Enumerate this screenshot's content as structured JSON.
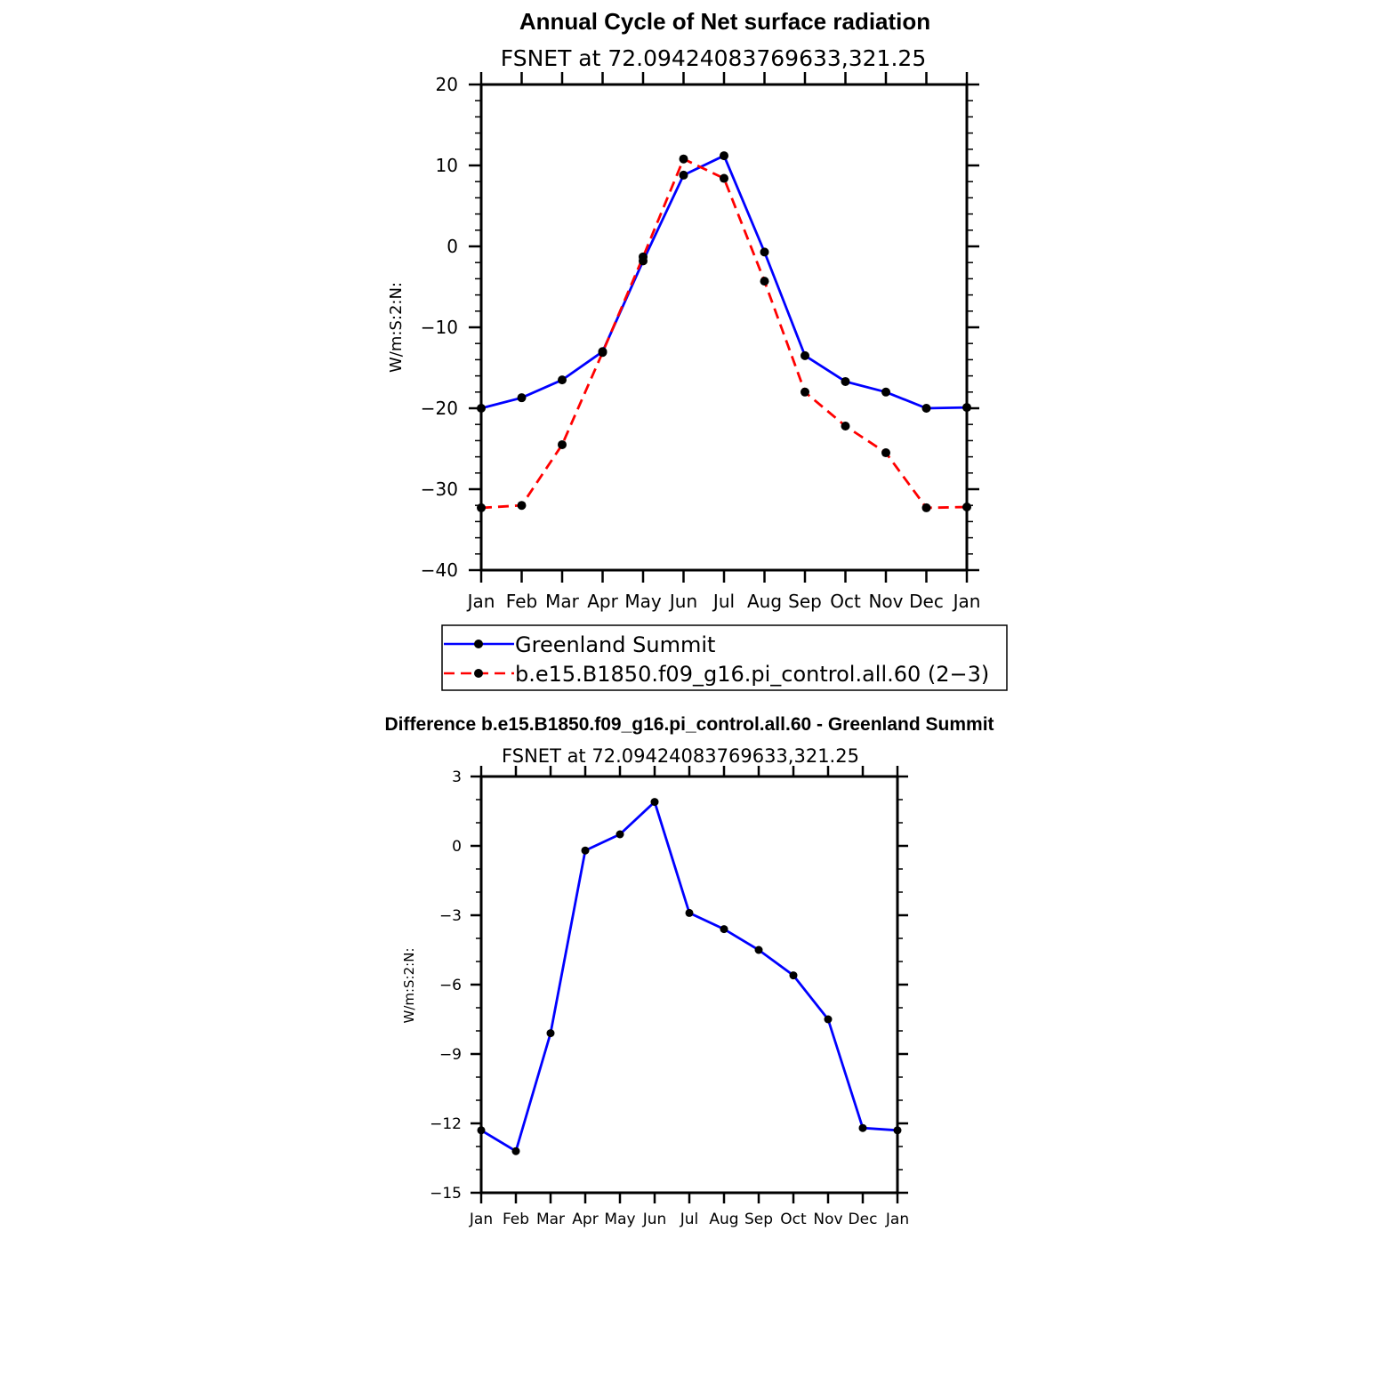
{
  "chart_data": [
    {
      "type": "line",
      "title": "Annual Cycle of Net surface radiation",
      "subtitle": "FSNET at 72.09424083769633,321.25",
      "ylabel": "W/m:S:2:N:",
      "xlabel": "",
      "categories": [
        "Jan",
        "Feb",
        "Mar",
        "Apr",
        "May",
        "Jun",
        "Jul",
        "Aug",
        "Sep",
        "Oct",
        "Nov",
        "Dec",
        "Jan"
      ],
      "ylim": [
        -40,
        20
      ],
      "yticks": [
        "20",
        "10",
        "0",
        "−10",
        "−20",
        "−30",
        "−40"
      ],
      "ytick_values": [
        20,
        10,
        0,
        -10,
        -20,
        -30,
        -40
      ],
      "legend_position": "below",
      "series": [
        {
          "name": "Greenland Summit",
          "color": "#0000ff",
          "dash": "solid",
          "values": [
            -20.0,
            -18.7,
            -16.5,
            -13.0,
            -1.8,
            8.8,
            11.2,
            -0.7,
            -13.5,
            -16.7,
            -18.0,
            -20.0,
            -19.9
          ]
        },
        {
          "name": "b.e15.B1850.f09_g16.pi_control.all.60 (2−3)",
          "color": "#ff0000",
          "dash": "dashed",
          "values": [
            -32.3,
            -32.0,
            -24.5,
            -13.1,
            -1.3,
            10.8,
            8.4,
            -4.3,
            -18.0,
            -22.2,
            -25.5,
            -32.3,
            -32.2
          ]
        }
      ]
    },
    {
      "type": "line",
      "title": "Difference b.e15.B1850.f09_g16.pi_control.all.60 - Greenland Summit",
      "subtitle": "FSNET at 72.09424083769633,321.25",
      "ylabel": "W/m:S:2:N:",
      "xlabel": "",
      "categories": [
        "Jan",
        "Feb",
        "Mar",
        "Apr",
        "May",
        "Jun",
        "Jul",
        "Aug",
        "Sep",
        "Oct",
        "Nov",
        "Dec",
        "Jan"
      ],
      "ylim": [
        -15,
        3
      ],
      "yticks": [
        "3",
        "0",
        "−3",
        "−6",
        "−9",
        "−12",
        "−15"
      ],
      "ytick_values": [
        3,
        0,
        -3,
        -6,
        -9,
        -12,
        -15
      ],
      "series": [
        {
          "color": "#0000ff",
          "dash": "solid",
          "values": [
            -12.3,
            -13.2,
            -8.1,
            -0.2,
            0.5,
            1.9,
            -2.9,
            -3.6,
            -4.5,
            -5.6,
            -7.5,
            -12.2,
            -12.3
          ]
        }
      ]
    }
  ]
}
